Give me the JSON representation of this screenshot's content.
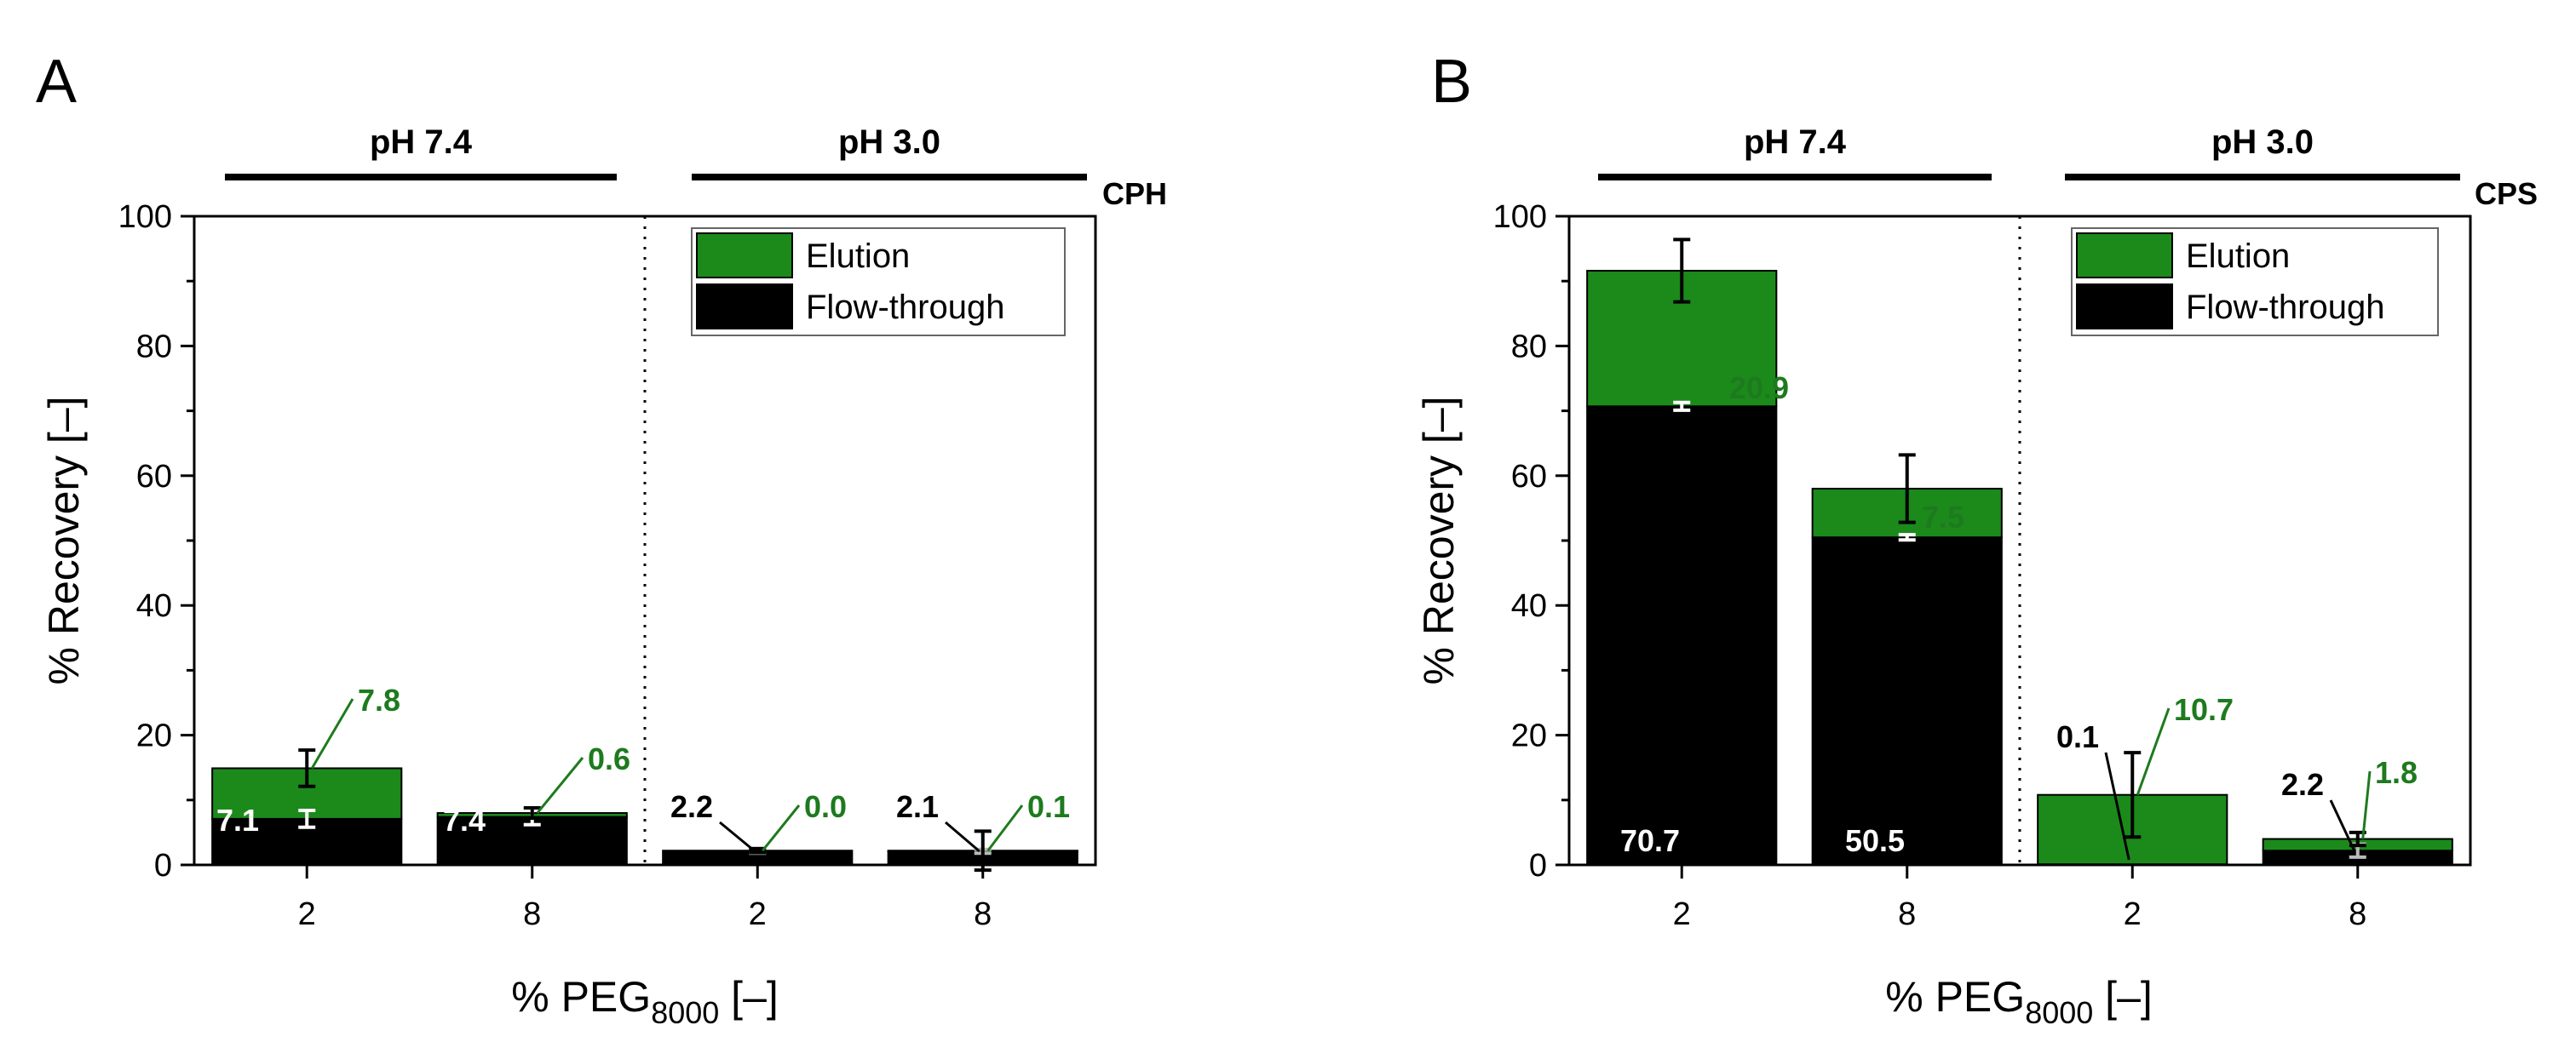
{
  "colors": {
    "elution": "#1b8a1b",
    "flow_through": "#000000",
    "label_green": "#1e7a1e"
  },
  "x_axis": {
    "title_prefix": "% PEG",
    "title_subscript": "8000",
    "title_suffix": " [–]"
  },
  "chart_data": [
    {
      "type": "bar",
      "stacked": true,
      "panel": "A",
      "material": "CPH",
      "groups": [
        "pH 7.4",
        "pH 3.0"
      ],
      "categories": [
        "2",
        "8",
        "2",
        "8"
      ],
      "category_group": [
        0,
        0,
        1,
        1
      ],
      "series": [
        {
          "name": "Flow-through",
          "values": [
            7.1,
            7.4,
            2.2,
            2.1
          ],
          "errors": [
            1.3,
            1.2,
            0.4,
            0.3
          ]
        },
        {
          "name": "Elution",
          "values": [
            7.8,
            0.6,
            0.0,
            0.1
          ],
          "errors": [
            2.8,
            0.8,
            0.3,
            3.0
          ]
        }
      ],
      "value_labels": {
        "flow_through": [
          "7.1",
          "7.4",
          "2.2",
          "2.1"
        ],
        "elution": [
          "7.8",
          "0.6",
          "0.0",
          "0.1"
        ]
      },
      "ylabel": "% Recovery [–]",
      "yticks": [
        "0",
        "20",
        "40",
        "60",
        "80",
        "100"
      ],
      "ylim": [
        0,
        100
      ],
      "legend": [
        "Elution",
        "Flow-through"
      ],
      "legend_position": "top-right"
    },
    {
      "type": "bar",
      "stacked": true,
      "panel": "B",
      "material": "CPS",
      "groups": [
        "pH 7.4",
        "pH 3.0"
      ],
      "categories": [
        "2",
        "8",
        "2",
        "8"
      ],
      "category_group": [
        0,
        0,
        1,
        1
      ],
      "series": [
        {
          "name": "Flow-through",
          "values": [
            70.7,
            50.5,
            0.1,
            2.2
          ],
          "errors": [
            0.6,
            0.4,
            0.0,
            1.0
          ]
        },
        {
          "name": "Elution",
          "values": [
            20.9,
            7.5,
            10.7,
            1.8
          ],
          "errors": [
            4.8,
            5.2,
            6.5,
            1.0
          ]
        }
      ],
      "value_labels": {
        "flow_through": [
          "70.7",
          "50.5",
          "0.1",
          "2.2"
        ],
        "elution": [
          "20.9",
          "7.5",
          "10.7",
          "1.8"
        ]
      },
      "ylabel": "% Recovery [–]",
      "yticks": [
        "0",
        "20",
        "40",
        "60",
        "80",
        "100"
      ],
      "ylim": [
        0,
        100
      ],
      "legend": [
        "Elution",
        "Flow-through"
      ],
      "legend_position": "top-right"
    }
  ]
}
